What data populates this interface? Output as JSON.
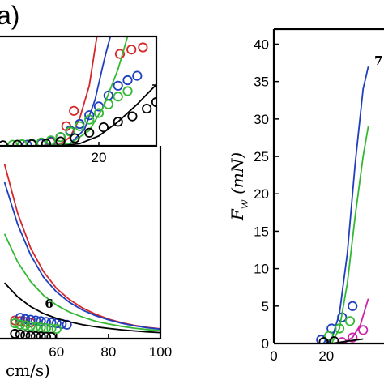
{
  "panel_label": "a)",
  "chart_data": [
    {
      "id": "left-main",
      "type": "scatter",
      "xlim": [
        32,
        100
      ],
      "ylim": [
        0,
        130
      ],
      "x_ticks": [
        60,
        80,
        100
      ],
      "x_tick_labels": [
        "60",
        "80",
        "100"
      ],
      "xlabel_visible": "cm/s)",
      "annotations": [
        {
          "text": "6",
          "x": 55.5,
          "y": 22
        }
      ],
      "grid": false,
      "series": [
        {
          "color": "#d62728",
          "model_y": [
            [
              40,
              125
            ],
            [
              45,
              90
            ],
            [
              50,
              65
            ],
            [
              55,
              48
            ],
            [
              60,
              36
            ],
            [
              65,
              28
            ],
            [
              70,
              22
            ],
            [
              75,
              17.5
            ],
            [
              80,
              14
            ],
            [
              85,
              11.5
            ],
            [
              90,
              9.5
            ],
            [
              95,
              8
            ],
            [
              100,
              7
            ]
          ],
          "points": [
            [
              44,
              13
            ],
            [
              46,
              12.5
            ],
            [
              48,
              12
            ],
            [
              50,
              11.5
            ]
          ]
        },
        {
          "color": "#1f3fbf",
          "model_y": [
            [
              40,
              112
            ],
            [
              45,
              82
            ],
            [
              50,
              60
            ],
            [
              55,
              44
            ],
            [
              60,
              33.5
            ],
            [
              65,
              26
            ],
            [
              70,
              20.5
            ],
            [
              75,
              16.5
            ],
            [
              80,
              13.5
            ],
            [
              85,
              11
            ],
            [
              90,
              9.2
            ],
            [
              95,
              7.8
            ],
            [
              100,
              6.8
            ]
          ],
          "points": [
            [
              46,
              15
            ],
            [
              48,
              14
            ],
            [
              50,
              13.5
            ],
            [
              52,
              13
            ],
            [
              54,
              12.5
            ],
            [
              56,
              12
            ],
            [
              58,
              11.5
            ],
            [
              60,
              11
            ],
            [
              62,
              10.5
            ],
            [
              64,
              10
            ]
          ]
        },
        {
          "color": "#33b833",
          "model_y": [
            [
              40,
              75
            ],
            [
              45,
              55
            ],
            [
              50,
              41
            ],
            [
              55,
              31
            ],
            [
              60,
              24
            ],
            [
              65,
              19
            ],
            [
              70,
              15.5
            ],
            [
              75,
              12.5
            ],
            [
              80,
              10.5
            ],
            [
              85,
              8.8
            ],
            [
              90,
              7.5
            ],
            [
              95,
              6.5
            ],
            [
              100,
              5.7
            ]
          ],
          "points": [
            [
              44,
              11
            ],
            [
              46,
              10
            ],
            [
              48,
              9.5
            ],
            [
              50,
              9
            ],
            [
              52,
              8.5
            ],
            [
              54,
              8
            ],
            [
              56,
              7.5
            ],
            [
              58,
              7.2
            ],
            [
              60,
              7
            ]
          ]
        },
        {
          "color": "#000000",
          "model_y": [
            [
              40,
              40
            ],
            [
              45,
              30
            ],
            [
              50,
              23
            ],
            [
              55,
              18
            ],
            [
              60,
              14.5
            ],
            [
              65,
              12
            ],
            [
              70,
              10
            ],
            [
              75,
              8.5
            ],
            [
              80,
              7.3
            ],
            [
              85,
              6.3
            ],
            [
              90,
              5.5
            ],
            [
              95,
              4.8
            ],
            [
              100,
              4.3
            ]
          ],
          "points": [
            [
              44,
              3.5
            ],
            [
              46,
              3
            ],
            [
              48,
              2.5
            ],
            [
              50,
              2
            ],
            [
              52,
              1.8
            ],
            [
              54,
              1.5
            ],
            [
              56,
              1.3
            ],
            [
              58,
              1.2
            ]
          ]
        }
      ]
    },
    {
      "id": "left-inset",
      "type": "scatter",
      "xlim": [
        8,
        26
      ],
      "ylim": [
        0,
        100
      ],
      "x_ticks": [
        20
      ],
      "x_tick_labels": [
        "20"
      ],
      "grid": false,
      "series": [
        {
          "color": "#d62728",
          "model_y": [
            [
              8,
              0
            ],
            [
              14,
              0
            ],
            [
              16,
              1.5
            ],
            [
              17,
              8
            ],
            [
              18,
              25
            ],
            [
              19,
              55
            ],
            [
              19.8,
              100
            ]
          ],
          "points": [
            [
              14,
              2
            ],
            [
              15,
              3
            ],
            [
              16,
              8
            ],
            [
              16.6,
              18
            ],
            [
              17.4,
              32
            ],
            [
              22.2,
              84
            ],
            [
              23.4,
              88
            ],
            [
              24.6,
              90
            ]
          ]
        },
        {
          "color": "#1f3fbf",
          "model_y": [
            [
              8,
              0
            ],
            [
              15,
              0
            ],
            [
              17,
              2
            ],
            [
              18.5,
              15
            ],
            [
              19.6,
              42
            ],
            [
              20.6,
              80
            ],
            [
              21.2,
              100
            ]
          ],
          "points": [
            [
              12.5,
              1
            ],
            [
              14,
              2
            ],
            [
              15,
              4
            ],
            [
              16,
              8
            ],
            [
              17,
              14
            ],
            [
              18,
              20
            ],
            [
              19,
              28
            ],
            [
              20,
              36
            ],
            [
              21,
              46
            ],
            [
              22,
              55
            ],
            [
              23,
              60
            ],
            [
              24,
              64
            ]
          ]
        },
        {
          "color": "#33b833",
          "model_y": [
            [
              8,
              0
            ],
            [
              15,
              0
            ],
            [
              17,
              2
            ],
            [
              19,
              14
            ],
            [
              20.5,
              36
            ],
            [
              22,
              70
            ],
            [
              23,
              100
            ]
          ],
          "points": [
            [
              11,
              1
            ],
            [
              12,
              1.5
            ],
            [
              13,
              2
            ],
            [
              14,
              3
            ],
            [
              15,
              5
            ],
            [
              16,
              8
            ],
            [
              17,
              13
            ],
            [
              18,
              18
            ],
            [
              19,
              24
            ],
            [
              20,
              30
            ],
            [
              21,
              38
            ],
            [
              22,
              45
            ],
            [
              23,
              50
            ]
          ]
        },
        {
          "color": "#000000",
          "model_y": [
            [
              8,
              0
            ],
            [
              16,
              0
            ],
            [
              18,
              2
            ],
            [
              20,
              9
            ],
            [
              22,
              22
            ],
            [
              24,
              38
            ],
            [
              26,
              56
            ]
          ],
          "points": [
            [
              8.5,
              0.5
            ],
            [
              10,
              0.5
            ],
            [
              11.5,
              1
            ],
            [
              13,
              1.5
            ],
            [
              14.5,
              2
            ],
            [
              16,
              4
            ],
            [
              17.5,
              7
            ],
            [
              19,
              12
            ],
            [
              20.5,
              17
            ],
            [
              22,
              22
            ],
            [
              23.5,
              27
            ],
            [
              25,
              34
            ],
            [
              26,
              40
            ]
          ]
        }
      ]
    },
    {
      "id": "right-main",
      "type": "scatter",
      "xlim": [
        0,
        50
      ],
      "ylim": [
        0,
        42
      ],
      "x_ticks": [
        0,
        20
      ],
      "x_tick_labels": [
        "0",
        "20"
      ],
      "y_ticks": [
        0,
        5,
        10,
        15,
        20,
        25,
        30,
        35,
        40
      ],
      "y_tick_labels": [
        "0",
        "5",
        "10",
        "15",
        "20",
        "25",
        "30",
        "35",
        "40"
      ],
      "ylabel_var": "F",
      "ylabel_sub": "w",
      "ylabel_unit": " (mN)",
      "annotations": [
        {
          "text": "7"
        }
      ],
      "grid": false,
      "series": [
        {
          "color": "#1f3fbf",
          "model_y": [
            [
              0,
              0
            ],
            [
              20,
              0
            ],
            [
              22,
              0.5
            ],
            [
              25,
              4
            ],
            [
              28,
              12
            ],
            [
              31,
              24
            ],
            [
              34,
              34
            ],
            [
              36,
              37
            ]
          ],
          "points": [
            [
              18,
              0.5
            ],
            [
              22,
              2
            ],
            [
              26,
              3.5
            ],
            [
              30,
              5
            ]
          ]
        },
        {
          "color": "#33b833",
          "model_y": [
            [
              0,
              0
            ],
            [
              22,
              0
            ],
            [
              25,
              2
            ],
            [
              28,
              8
            ],
            [
              31,
              17
            ],
            [
              34,
              25
            ],
            [
              36,
              29
            ]
          ],
          "points": [
            [
              21,
              1
            ],
            [
              25,
              2
            ],
            [
              29,
              3
            ]
          ]
        },
        {
          "color": "#cc22aa",
          "model_y": [
            [
              0,
              0
            ],
            [
              26,
              0
            ],
            [
              30,
              0.8
            ],
            [
              33,
              2.5
            ],
            [
              36,
              6
            ]
          ],
          "points": [
            [
              26,
              0.2
            ],
            [
              30,
              0.8
            ],
            [
              34,
              1.8
            ]
          ]
        },
        {
          "color": "#000000",
          "model_y": [
            [
              0,
              0
            ],
            [
              22,
              0
            ],
            [
              28,
              0.3
            ],
            [
              34,
              0.6
            ]
          ],
          "points": [
            [
              19,
              0.2
            ],
            [
              23,
              0.3
            ]
          ]
        }
      ]
    }
  ]
}
